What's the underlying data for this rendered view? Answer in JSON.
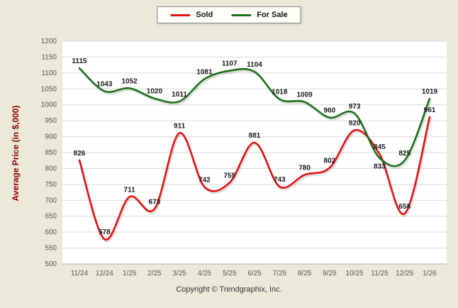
{
  "footer": {
    "text": "Copyright © Trendgraphix, Inc."
  },
  "chart_data": {
    "type": "line",
    "title": "",
    "categories": [
      "11/24",
      "12/24",
      "1/25",
      "2/25",
      "3/25",
      "4/25",
      "5/25",
      "6/25",
      "7/25",
      "8/25",
      "9/25",
      "10/25",
      "11/25",
      "12/25",
      "1/26"
    ],
    "series": [
      {
        "name": "Sold",
        "color": "#e31212",
        "values": [
          826,
          578,
          711,
          673,
          911,
          742,
          755,
          881,
          743,
          780,
          802,
          920,
          845,
          658,
          961
        ]
      },
      {
        "name": "For Sale",
        "color": "#1a701a",
        "values": [
          1115,
          1043,
          1052,
          1020,
          1011,
          1081,
          1107,
          1104,
          1018,
          1009,
          960,
          973,
          833,
          825,
          1019
        ]
      }
    ],
    "xlabel": "",
    "ylabel": "Average Price (in $,000)",
    "ylim": [
      500,
      1200
    ],
    "ytick_step": 50,
    "grid": true,
    "legend_position": "top",
    "background": "#ece9d8",
    "plot_background": "#ffffff",
    "gridline_color": "#d9d9d9",
    "label_color": "#1a1a1a",
    "tick_color": "#555555"
  }
}
